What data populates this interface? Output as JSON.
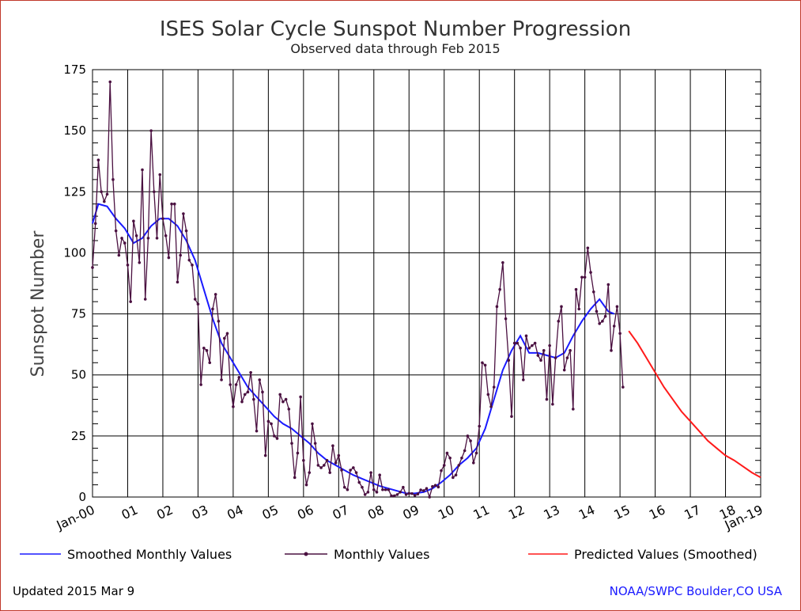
{
  "chart_data": {
    "type": "line",
    "title": "ISES Solar Cycle Sunspot Number Progression",
    "subtitle": "Observed data through Feb 2015",
    "ylabel": "Sunspot Number",
    "xlabel": "",
    "ylim": [
      0,
      175
    ],
    "xlim": [
      "2000-01",
      "2019-01"
    ],
    "y_ticks": [
      "0",
      "25",
      "50",
      "75",
      "100",
      "125",
      "150",
      "175"
    ],
    "x_tick_labels": [
      "Jan-00",
      "01",
      "02",
      "03",
      "04",
      "05",
      "06",
      "07",
      "08",
      "09",
      "10",
      "11",
      "12",
      "13",
      "14",
      "15",
      "16",
      "17",
      "18",
      "Jan-19"
    ],
    "grid": true,
    "legend_position": "bottom",
    "series": [
      {
        "name": "Smoothed Monthly Values",
        "color": "#1a1aff",
        "points": [
          [
            "2000-01",
            112
          ],
          [
            "2000-03",
            120
          ],
          [
            "2000-06",
            119
          ],
          [
            "2000-09",
            114
          ],
          [
            "2000-12",
            110
          ],
          [
            "2001-03",
            104
          ],
          [
            "2001-06",
            106
          ],
          [
            "2001-09",
            111
          ],
          [
            "2001-12",
            114
          ],
          [
            "2002-03",
            114
          ],
          [
            "2002-06",
            111
          ],
          [
            "2002-09",
            105
          ],
          [
            "2002-12",
            97
          ],
          [
            "2003-03",
            85
          ],
          [
            "2003-06",
            73
          ],
          [
            "2003-09",
            63
          ],
          [
            "2003-12",
            57
          ],
          [
            "2004-03",
            51
          ],
          [
            "2004-06",
            45
          ],
          [
            "2004-09",
            41
          ],
          [
            "2004-12",
            37
          ],
          [
            "2005-03",
            33
          ],
          [
            "2005-06",
            30
          ],
          [
            "2005-09",
            28
          ],
          [
            "2005-12",
            25
          ],
          [
            "2006-03",
            22
          ],
          [
            "2006-06",
            18
          ],
          [
            "2006-09",
            15
          ],
          [
            "2006-12",
            13
          ],
          [
            "2007-03",
            11
          ],
          [
            "2007-06",
            9
          ],
          [
            "2007-09",
            7.5
          ],
          [
            "2007-12",
            6
          ],
          [
            "2008-03",
            4.5
          ],
          [
            "2008-06",
            3.5
          ],
          [
            "2008-09",
            2.5
          ],
          [
            "2008-12",
            1.5
          ],
          [
            "2009-03",
            1.5
          ],
          [
            "2009-06",
            2
          ],
          [
            "2009-09",
            3.5
          ],
          [
            "2009-12",
            6
          ],
          [
            "2010-03",
            9
          ],
          [
            "2010-06",
            13
          ],
          [
            "2010-09",
            16
          ],
          [
            "2010-12",
            20
          ],
          [
            "2011-03",
            28
          ],
          [
            "2011-06",
            40
          ],
          [
            "2011-09",
            52
          ],
          [
            "2011-12",
            60
          ],
          [
            "2012-03",
            66
          ],
          [
            "2012-06",
            59
          ],
          [
            "2012-09",
            59
          ],
          [
            "2012-12",
            58
          ],
          [
            "2013-03",
            57
          ],
          [
            "2013-06",
            59
          ],
          [
            "2013-09",
            66
          ],
          [
            "2013-12",
            72
          ],
          [
            "2014-03",
            77
          ],
          [
            "2014-06",
            81
          ],
          [
            "2014-09",
            76
          ],
          [
            "2014-11",
            75
          ]
        ]
      },
      {
        "name": "Monthly Values",
        "color": "#4a1040",
        "points": [
          [
            "2000-01",
            94
          ],
          [
            "2000-02",
            112
          ],
          [
            "2000-03",
            138
          ],
          [
            "2000-04",
            125
          ],
          [
            "2000-05",
            121
          ],
          [
            "2000-06",
            124
          ],
          [
            "2000-07",
            170
          ],
          [
            "2000-08",
            130
          ],
          [
            "2000-09",
            109
          ],
          [
            "2000-10",
            99
          ],
          [
            "2000-11",
            106
          ],
          [
            "2000-12",
            104
          ],
          [
            "2001-01",
            95
          ],
          [
            "2001-02",
            80
          ],
          [
            "2001-03",
            113
          ],
          [
            "2001-04",
            107
          ],
          [
            "2001-05",
            96
          ],
          [
            "2001-06",
            134
          ],
          [
            "2001-07",
            81
          ],
          [
            "2001-08",
            106
          ],
          [
            "2001-09",
            150
          ],
          [
            "2001-10",
            125
          ],
          [
            "2001-11",
            106
          ],
          [
            "2001-12",
            132
          ],
          [
            "2002-01",
            114
          ],
          [
            "2002-02",
            107
          ],
          [
            "2002-03",
            98
          ],
          [
            "2002-04",
            120
          ],
          [
            "2002-05",
            120
          ],
          [
            "2002-06",
            88
          ],
          [
            "2002-07",
            99
          ],
          [
            "2002-08",
            116
          ],
          [
            "2002-09",
            109
          ],
          [
            "2002-10",
            97
          ],
          [
            "2002-11",
            95
          ],
          [
            "2002-12",
            81
          ],
          [
            "2003-01",
            79
          ],
          [
            "2003-02",
            46
          ],
          [
            "2003-03",
            61
          ],
          [
            "2003-04",
            60
          ],
          [
            "2003-05",
            55
          ],
          [
            "2003-06",
            77
          ],
          [
            "2003-07",
            83
          ],
          [
            "2003-08",
            72
          ],
          [
            "2003-09",
            48
          ],
          [
            "2003-10",
            65
          ],
          [
            "2003-11",
            67
          ],
          [
            "2003-12",
            46
          ],
          [
            "2004-01",
            37
          ],
          [
            "2004-02",
            46
          ],
          [
            "2004-03",
            49
          ],
          [
            "2004-04",
            39
          ],
          [
            "2004-05",
            42
          ],
          [
            "2004-06",
            43
          ],
          [
            "2004-07",
            51
          ],
          [
            "2004-08",
            40
          ],
          [
            "2004-09",
            27
          ],
          [
            "2004-10",
            48
          ],
          [
            "2004-11",
            43
          ],
          [
            "2004-12",
            17
          ],
          [
            "2005-01",
            31
          ],
          [
            "2005-02",
            30
          ],
          [
            "2005-03",
            25
          ],
          [
            "2005-04",
            24
          ],
          [
            "2005-05",
            42
          ],
          [
            "2005-06",
            39
          ],
          [
            "2005-07",
            40
          ],
          [
            "2005-08",
            36
          ],
          [
            "2005-09",
            22
          ],
          [
            "2005-10",
            8
          ],
          [
            "2005-11",
            18
          ],
          [
            "2005-12",
            41
          ],
          [
            "2006-01",
            15
          ],
          [
            "2006-02",
            5
          ],
          [
            "2006-03",
            10
          ],
          [
            "2006-04",
            30
          ],
          [
            "2006-05",
            22
          ],
          [
            "2006-06",
            13
          ],
          [
            "2006-07",
            12
          ],
          [
            "2006-08",
            13
          ],
          [
            "2006-09",
            15
          ],
          [
            "2006-10",
            10
          ],
          [
            "2006-11",
            21
          ],
          [
            "2006-12",
            14
          ],
          [
            "2007-01",
            17
          ],
          [
            "2007-02",
            11
          ],
          [
            "2007-03",
            4
          ],
          [
            "2007-04",
            3
          ],
          [
            "2007-05",
            11
          ],
          [
            "2007-06",
            12
          ],
          [
            "2007-07",
            10
          ],
          [
            "2007-08",
            6
          ],
          [
            "2007-09",
            4
          ],
          [
            "2007-10",
            1
          ],
          [
            "2007-11",
            2
          ],
          [
            "2007-12",
            10
          ],
          [
            "2008-01",
            3
          ],
          [
            "2008-02",
            2
          ],
          [
            "2008-03",
            9
          ],
          [
            "2008-04",
            3
          ],
          [
            "2008-05",
            3
          ],
          [
            "2008-06",
            3
          ],
          [
            "2008-07",
            0.5
          ],
          [
            "2008-08",
            0.5
          ],
          [
            "2008-09",
            1
          ],
          [
            "2008-10",
            2
          ],
          [
            "2008-11",
            4
          ],
          [
            "2008-12",
            1
          ],
          [
            "2009-01",
            1.5
          ],
          [
            "2009-02",
            1.4
          ],
          [
            "2009-03",
            0.7
          ],
          [
            "2009-04",
            1.2
          ],
          [
            "2009-05",
            2.9
          ],
          [
            "2009-06",
            2.6
          ],
          [
            "2009-07",
            3.5
          ],
          [
            "2009-08",
            0
          ],
          [
            "2009-09",
            4.3
          ],
          [
            "2009-10",
            4.8
          ],
          [
            "2009-11",
            4.1
          ],
          [
            "2009-12",
            10.8
          ],
          [
            "2010-01",
            13
          ],
          [
            "2010-02",
            18
          ],
          [
            "2010-03",
            16
          ],
          [
            "2010-04",
            8
          ],
          [
            "2010-05",
            9
          ],
          [
            "2010-06",
            13
          ],
          [
            "2010-07",
            16
          ],
          [
            "2010-08",
            19
          ],
          [
            "2010-09",
            25
          ],
          [
            "2010-10",
            23
          ],
          [
            "2010-11",
            14
          ],
          [
            "2010-12",
            18
          ],
          [
            "2011-01",
            29
          ],
          [
            "2011-02",
            55
          ],
          [
            "2011-03",
            54
          ],
          [
            "2011-04",
            42
          ],
          [
            "2011-05",
            37
          ],
          [
            "2011-06",
            45
          ],
          [
            "2011-07",
            78
          ],
          [
            "2011-08",
            85
          ],
          [
            "2011-09",
            96
          ],
          [
            "2011-10",
            73
          ],
          [
            "2011-11",
            56
          ],
          [
            "2011-12",
            33
          ],
          [
            "2012-01",
            63
          ],
          [
            "2012-02",
            63
          ],
          [
            "2012-03",
            61
          ],
          [
            "2012-04",
            48
          ],
          [
            "2012-05",
            66
          ],
          [
            "2012-06",
            61
          ],
          [
            "2012-07",
            62
          ],
          [
            "2012-08",
            63
          ],
          [
            "2012-09",
            58
          ],
          [
            "2012-10",
            56
          ],
          [
            "2012-11",
            60
          ],
          [
            "2012-12",
            40
          ],
          [
            "2013-01",
            62
          ],
          [
            "2013-02",
            38
          ],
          [
            "2013-03",
            57
          ],
          [
            "2013-04",
            72
          ],
          [
            "2013-05",
            78
          ],
          [
            "2013-06",
            52
          ],
          [
            "2013-07",
            57
          ],
          [
            "2013-08",
            60
          ],
          [
            "2013-09",
            36
          ],
          [
            "2013-10",
            85
          ],
          [
            "2013-11",
            77
          ],
          [
            "2013-12",
            90
          ],
          [
            "2014-01",
            90
          ],
          [
            "2014-02",
            102
          ],
          [
            "2014-03",
            92
          ],
          [
            "2014-04",
            84
          ],
          [
            "2014-05",
            76
          ],
          [
            "2014-06",
            71
          ],
          [
            "2014-07",
            72
          ],
          [
            "2014-08",
            74
          ],
          [
            "2014-09",
            87
          ],
          [
            "2014-10",
            60
          ],
          [
            "2014-11",
            70
          ],
          [
            "2014-12",
            78
          ],
          [
            "2015-01",
            67
          ],
          [
            "2015-02",
            45
          ]
        ]
      },
      {
        "name": "Predicted Values (Smoothed)",
        "color": "#ff1a1a",
        "points": [
          [
            "2015-04",
            68
          ],
          [
            "2015-07",
            63
          ],
          [
            "2015-10",
            57
          ],
          [
            "2016-01",
            51
          ],
          [
            "2016-04",
            45
          ],
          [
            "2016-07",
            40
          ],
          [
            "2016-10",
            35
          ],
          [
            "2017-01",
            31
          ],
          [
            "2017-04",
            27
          ],
          [
            "2017-07",
            23
          ],
          [
            "2017-10",
            20
          ],
          [
            "2018-01",
            17
          ],
          [
            "2018-04",
            15
          ],
          [
            "2018-07",
            12.5
          ],
          [
            "2018-10",
            10
          ],
          [
            "2019-01",
            8
          ]
        ]
      }
    ]
  },
  "footer": {
    "updated": "Updated 2015 Mar  9",
    "credit": "NOAA/SWPC Boulder,CO USA"
  }
}
